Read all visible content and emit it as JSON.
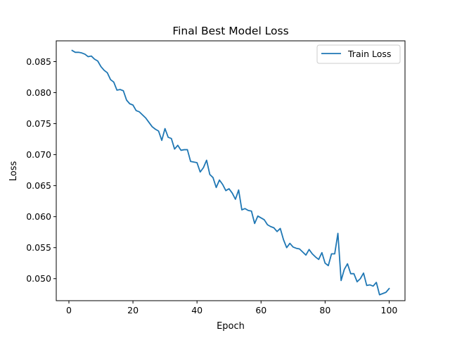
{
  "chart_data": {
    "type": "line",
    "title": "Final Best Model Loss",
    "xlabel": "Epoch",
    "ylabel": "Loss",
    "xlim": [
      -3.95,
      104.95
    ],
    "ylim": [
      0.04645,
      0.08835
    ],
    "xticks": [
      0,
      20,
      40,
      60,
      80,
      100
    ],
    "xtick_labels": [
      "0",
      "20",
      "40",
      "60",
      "80",
      "100"
    ],
    "yticks": [
      0.05,
      0.055,
      0.06,
      0.065,
      0.07,
      0.075,
      0.08,
      0.085
    ],
    "ytick_labels": [
      "0.050",
      "0.055",
      "0.060",
      "0.065",
      "0.070",
      "0.075",
      "0.080",
      "0.085"
    ],
    "grid": false,
    "legend_position": "top-right",
    "series": [
      {
        "name": "Train Loss",
        "color": "#1f77b4",
        "x": [
          1,
          2,
          3,
          4,
          5,
          6,
          7,
          8,
          9,
          10,
          11,
          12,
          13,
          14,
          15,
          16,
          17,
          18,
          19,
          20,
          21,
          22,
          23,
          24,
          25,
          26,
          27,
          28,
          29,
          30,
          31,
          32,
          33,
          34,
          35,
          36,
          37,
          38,
          39,
          40,
          41,
          42,
          43,
          44,
          45,
          46,
          47,
          48,
          49,
          50,
          51,
          52,
          53,
          54,
          55,
          56,
          57,
          58,
          59,
          60,
          61,
          62,
          63,
          64,
          65,
          66,
          67,
          68,
          69,
          70,
          71,
          72,
          73,
          74,
          75,
          76,
          77,
          78,
          79,
          80,
          81,
          82,
          83,
          84,
          85,
          86,
          87,
          88,
          89,
          90,
          91,
          92,
          93,
          94,
          95,
          96,
          97,
          98,
          99,
          100
        ],
        "values": [
          0.0868,
          0.0865,
          0.0865,
          0.0864,
          0.0862,
          0.0858,
          0.0859,
          0.0854,
          0.0851,
          0.0842,
          0.0836,
          0.0832,
          0.0821,
          0.0817,
          0.0804,
          0.0805,
          0.0803,
          0.0788,
          0.0782,
          0.078,
          0.0771,
          0.0769,
          0.0764,
          0.0759,
          0.0752,
          0.0745,
          0.0741,
          0.0738,
          0.0723,
          0.0742,
          0.0728,
          0.0726,
          0.0709,
          0.0715,
          0.0707,
          0.0708,
          0.0708,
          0.0689,
          0.0688,
          0.0687,
          0.0672,
          0.0679,
          0.0691,
          0.0668,
          0.0663,
          0.0647,
          0.0659,
          0.0652,
          0.0642,
          0.0645,
          0.0638,
          0.0628,
          0.0643,
          0.0611,
          0.0613,
          0.061,
          0.0609,
          0.0589,
          0.0601,
          0.0598,
          0.0595,
          0.0587,
          0.0584,
          0.0582,
          0.0576,
          0.0581,
          0.0563,
          0.055,
          0.0557,
          0.0551,
          0.0549,
          0.0548,
          0.0543,
          0.0538,
          0.0547,
          0.054,
          0.0535,
          0.0531,
          0.0542,
          0.0525,
          0.0521,
          0.054,
          0.054,
          0.0573,
          0.0497,
          0.0515,
          0.0524,
          0.0508,
          0.0508,
          0.0495,
          0.05,
          0.0509,
          0.0489,
          0.049,
          0.0488,
          0.0494,
          0.0474,
          0.0476,
          0.0478,
          0.0484
        ]
      }
    ]
  }
}
